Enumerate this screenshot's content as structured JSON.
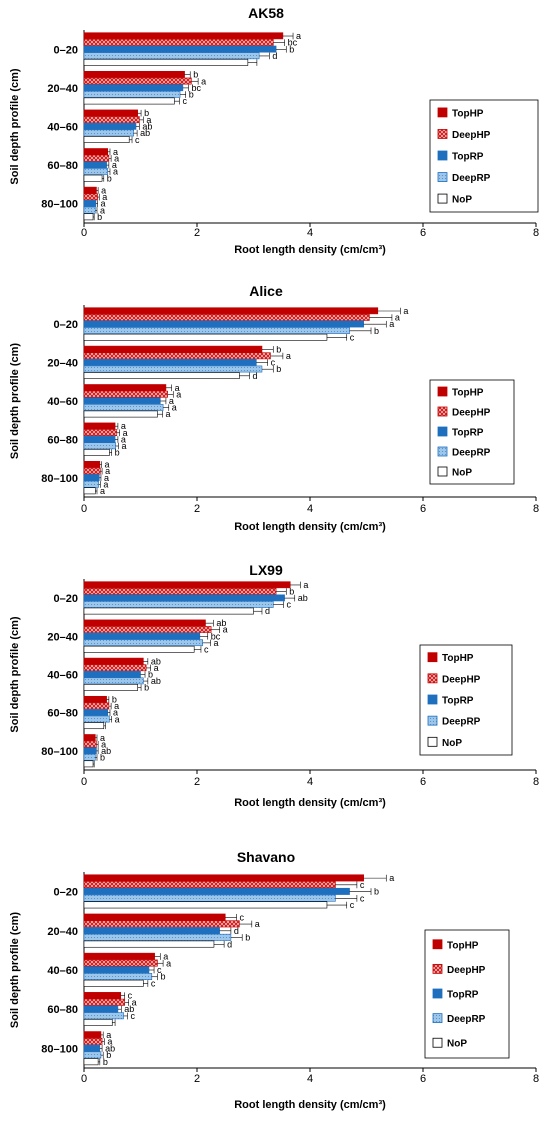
{
  "legend_labels": [
    "TopHP",
    "DeepHP",
    "TopRP",
    "DeepRP",
    "NoP"
  ],
  "series_colors": {
    "TopHP": "#c00000",
    "DeepHP": "#e03030",
    "TopRP": "#1f6fbf",
    "DeepRP": "#7fb3e0",
    "NoP": "#ffffff"
  },
  "chart_data": [
    {
      "type": "bar",
      "orientation": "horizontal",
      "title": "AK58",
      "xlabel": "Root length density (cm/cm³)",
      "ylabel": "Soil depth profile (cm)",
      "xlim": [
        0,
        8
      ],
      "xticks": [
        "0",
        "2",
        "4",
        "6",
        "8"
      ],
      "categories": [
        "0–20",
        "20–40",
        "40–60",
        "60–80",
        "80–100"
      ],
      "legend_position": "right",
      "series": [
        {
          "name": "TopHP",
          "values": [
            3.52,
            1.78,
            0.95,
            0.42,
            0.22
          ],
          "errors": [
            0.18,
            0.1,
            0.06,
            0.04,
            0.03
          ],
          "letters": [
            "a",
            "b",
            "b",
            "a",
            "a"
          ]
        },
        {
          "name": "DeepHP",
          "values": [
            3.35,
            1.9,
            0.98,
            0.44,
            0.24
          ],
          "errors": [
            0.2,
            0.12,
            0.07,
            0.04,
            0.03
          ],
          "letters": [
            "bc",
            "a",
            "a",
            "a",
            "a"
          ]
        },
        {
          "name": "TopRP",
          "values": [
            3.4,
            1.75,
            0.92,
            0.4,
            0.21
          ],
          "errors": [
            0.18,
            0.1,
            0.06,
            0.04,
            0.03
          ],
          "letters": [
            "b",
            "bc",
            "ab",
            "a",
            "a"
          ]
        },
        {
          "name": "DeepRP",
          "values": [
            3.1,
            1.7,
            0.88,
            0.42,
            0.2
          ],
          "errors": [
            0.18,
            0.1,
            0.06,
            0.04,
            0.03
          ],
          "letters": [
            "d",
            "b",
            "ab",
            "a",
            "a"
          ]
        },
        {
          "name": "NoP",
          "values": [
            2.9,
            1.6,
            0.8,
            0.32,
            0.16
          ],
          "errors": [
            0.16,
            0.09,
            0.05,
            0.03,
            0.02
          ],
          "letters": [
            "",
            "c",
            "c",
            "b",
            "b"
          ]
        }
      ]
    },
    {
      "type": "bar",
      "orientation": "horizontal",
      "title": "Alice",
      "xlabel": "Root length density (cm/cm³)",
      "ylabel": "Soil depth profile (cm)",
      "xlim": [
        0,
        8
      ],
      "xticks": [
        "0",
        "2",
        "4",
        "6",
        "8"
      ],
      "categories": [
        "0–20",
        "20–40",
        "40–60",
        "60–80",
        "80–100"
      ],
      "legend_position": "right",
      "series": [
        {
          "name": "TopHP",
          "values": [
            5.2,
            3.15,
            1.45,
            0.55,
            0.28
          ],
          "errors": [
            0.4,
            0.2,
            0.1,
            0.05,
            0.03
          ],
          "letters": [
            "a",
            "b",
            "a",
            "a",
            "a"
          ]
        },
        {
          "name": "DeepHP",
          "values": [
            5.05,
            3.3,
            1.48,
            0.58,
            0.29
          ],
          "errors": [
            0.4,
            0.22,
            0.1,
            0.05,
            0.03
          ],
          "letters": [
            "a",
            "a",
            "a",
            "a",
            "a"
          ]
        },
        {
          "name": "TopRP",
          "values": [
            4.95,
            3.05,
            1.35,
            0.55,
            0.27
          ],
          "errors": [
            0.4,
            0.2,
            0.1,
            0.05,
            0.03
          ],
          "letters": [
            "a",
            "c",
            "a",
            "a",
            "a"
          ]
        },
        {
          "name": "DeepRP",
          "values": [
            4.7,
            3.15,
            1.4,
            0.56,
            0.26
          ],
          "errors": [
            0.38,
            0.2,
            0.1,
            0.05,
            0.03
          ],
          "letters": [
            "b",
            "b",
            "a",
            "a",
            "a"
          ]
        },
        {
          "name": "NoP",
          "values": [
            4.3,
            2.75,
            1.3,
            0.45,
            0.2
          ],
          "errors": [
            0.35,
            0.18,
            0.09,
            0.04,
            0.03
          ],
          "letters": [
            "c",
            "d",
            "a",
            "b",
            "a"
          ]
        }
      ]
    },
    {
      "type": "bar",
      "orientation": "horizontal",
      "title": "LX99",
      "xlabel": "Root length density (cm/cm³)",
      "ylabel": "Soil depth profile (cm)",
      "xlim": [
        0,
        8
      ],
      "xticks": [
        "0",
        "2",
        "4",
        "6",
        "8"
      ],
      "categories": [
        "0–20",
        "20–40",
        "40–60",
        "60–80",
        "80–100"
      ],
      "legend_position": "right",
      "series": [
        {
          "name": "TopHP",
          "values": [
            3.65,
            2.15,
            1.05,
            0.4,
            0.2
          ],
          "errors": [
            0.18,
            0.14,
            0.08,
            0.04,
            0.03
          ],
          "letters": [
            "a",
            "ab",
            "ab",
            "b",
            "a"
          ]
        },
        {
          "name": "DeepHP",
          "values": [
            3.4,
            2.25,
            1.1,
            0.44,
            0.22
          ],
          "errors": [
            0.18,
            0.15,
            0.08,
            0.04,
            0.03
          ],
          "letters": [
            "b",
            "a",
            "a",
            "a",
            "a"
          ]
        },
        {
          "name": "TopRP",
          "values": [
            3.55,
            2.05,
            1.0,
            0.42,
            0.22
          ],
          "errors": [
            0.18,
            0.14,
            0.08,
            0.04,
            0.03
          ],
          "letters": [
            "ab",
            "bc",
            "b",
            "a",
            "ab"
          ]
        },
        {
          "name": "DeepRP",
          "values": [
            3.35,
            2.1,
            1.05,
            0.45,
            0.2
          ],
          "errors": [
            0.18,
            0.14,
            0.08,
            0.04,
            0.03
          ],
          "letters": [
            "c",
            "a",
            "ab",
            "a",
            "b"
          ]
        },
        {
          "name": "NoP",
          "values": [
            3.0,
            1.95,
            0.95,
            0.35,
            0.16
          ],
          "errors": [
            0.15,
            0.12,
            0.06,
            0.03,
            0.02
          ],
          "letters": [
            "d",
            "c",
            "b",
            "",
            ""
          ]
        }
      ]
    },
    {
      "type": "bar",
      "orientation": "horizontal",
      "title": "Shavano",
      "xlabel": "Root length density (cm/cm³)",
      "ylabel": "Soil depth profile (cm)",
      "xlim": [
        0,
        8
      ],
      "xticks": [
        "0",
        "2",
        "4",
        "6",
        "8"
      ],
      "categories": [
        "0–20",
        "20–40",
        "40–60",
        "60–80",
        "80–100"
      ],
      "legend_position": "right",
      "series": [
        {
          "name": "TopHP",
          "values": [
            4.95,
            2.5,
            1.25,
            0.65,
            0.3
          ],
          "errors": [
            0.4,
            0.2,
            0.1,
            0.07,
            0.04
          ],
          "letters": [
            "a",
            "c",
            "a",
            "c",
            "a"
          ]
        },
        {
          "name": "DeepHP",
          "values": [
            4.45,
            2.75,
            1.3,
            0.72,
            0.32
          ],
          "errors": [
            0.38,
            0.22,
            0.1,
            0.07,
            0.04
          ],
          "letters": [
            "c",
            "a",
            "a",
            "a",
            "a"
          ]
        },
        {
          "name": "TopRP",
          "values": [
            4.7,
            2.4,
            1.15,
            0.6,
            0.28
          ],
          "errors": [
            0.38,
            0.2,
            0.09,
            0.06,
            0.04
          ],
          "letters": [
            "b",
            "d",
            "c",
            "ab",
            "ab"
          ]
        },
        {
          "name": "DeepRP",
          "values": [
            4.45,
            2.6,
            1.2,
            0.7,
            0.3
          ],
          "errors": [
            0.38,
            0.2,
            0.1,
            0.07,
            0.04
          ],
          "letters": [
            "c",
            "b",
            "b",
            "c",
            "b"
          ]
        },
        {
          "name": "NoP",
          "values": [
            4.3,
            2.3,
            1.05,
            0.5,
            0.25
          ],
          "errors": [
            0.35,
            0.18,
            0.08,
            0.05,
            0.03
          ],
          "letters": [
            "c",
            "d",
            "c",
            "",
            "b"
          ]
        }
      ]
    }
  ]
}
